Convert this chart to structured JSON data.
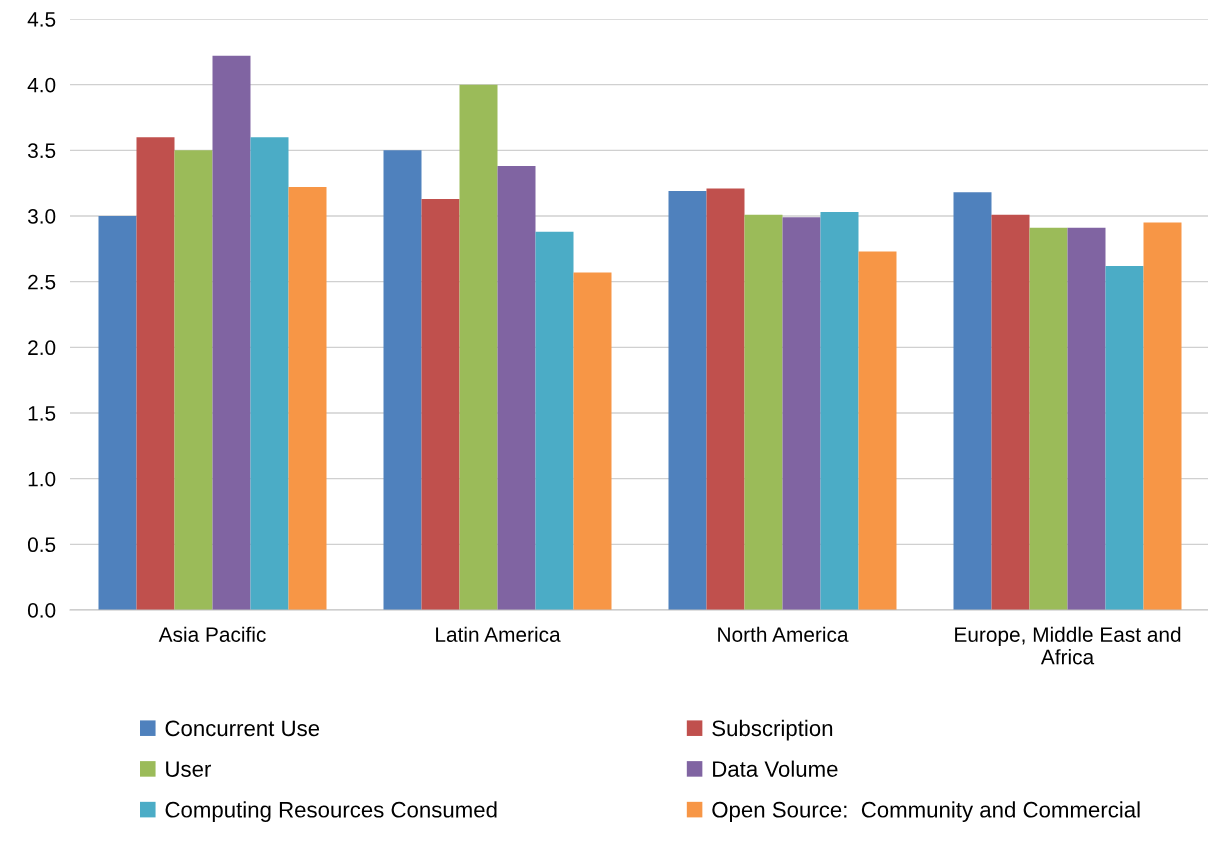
{
  "chart_data": {
    "type": "bar",
    "categories": [
      "Asia Pacific",
      "Latin America",
      "North America",
      "Europe, Middle East and\nAfrica"
    ],
    "series": [
      {
        "name": "Concurrent Use",
        "color": "#4f81bd",
        "values": [
          3.0,
          3.5,
          3.19,
          3.18
        ]
      },
      {
        "name": "Subscription",
        "color": "#c0504d",
        "values": [
          3.6,
          3.13,
          3.21,
          3.01
        ]
      },
      {
        "name": "User",
        "color": "#9bbb59",
        "values": [
          3.5,
          4.0,
          3.01,
          2.91
        ]
      },
      {
        "name": "Data Volume",
        "color": "#8064a2",
        "values": [
          4.22,
          3.38,
          2.99,
          2.91
        ]
      },
      {
        "name": "Computing Resources Consumed",
        "color": "#4bacc6",
        "values": [
          3.6,
          2.88,
          3.03,
          2.62
        ]
      },
      {
        "name": "Open Source:  Community and Commercial",
        "color": "#f79646",
        "values": [
          3.22,
          2.57,
          2.73,
          2.95
        ]
      }
    ],
    "ylim": [
      0,
      4.5
    ],
    "yticks": [
      {
        "value": 0,
        "label": "0.0"
      },
      0.5,
      {
        "value": 1,
        "label": "1.0"
      },
      1.5,
      {
        "value": 2,
        "label": "2.0"
      },
      2.5,
      {
        "value": 3,
        "label": "3.0"
      },
      3.5,
      {
        "value": 4,
        "label": "4.0"
      },
      4.5
    ],
    "grid": "y",
    "legend": "bottom"
  }
}
